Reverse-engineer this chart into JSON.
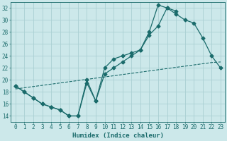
{
  "bg_color": "#cce8ea",
  "grid_color": "#aad0d3",
  "line_color": "#1a6b6b",
  "xlabel": "Humidex (Indice chaleur)",
  "xlim": [
    -0.5,
    23.5
  ],
  "ylim": [
    13,
    33
  ],
  "yticks": [
    14,
    16,
    18,
    20,
    22,
    24,
    26,
    28,
    30,
    32
  ],
  "xticks": [
    0,
    1,
    2,
    3,
    4,
    5,
    6,
    7,
    8,
    9,
    10,
    11,
    12,
    13,
    14,
    15,
    16,
    17,
    18,
    19,
    20,
    21,
    22,
    23
  ],
  "line1_x": [
    0,
    1,
    2,
    3,
    4,
    5,
    6,
    7,
    8,
    9,
    10,
    11,
    12,
    13,
    14,
    15,
    16,
    17,
    18,
    19,
    20,
    21,
    22,
    23
  ],
  "line1_y": [
    19,
    18,
    17,
    16,
    15.5,
    15,
    14,
    14,
    20,
    16.5,
    21,
    22,
    23,
    24,
    25,
    27.5,
    29,
    32,
    31,
    30,
    29.5,
    27,
    24,
    22
  ],
  "line2_x": [
    0,
    1,
    2,
    3,
    4,
    5,
    6,
    7,
    8,
    9,
    10,
    11,
    12,
    13,
    14,
    15,
    16,
    17,
    18,
    19,
    20,
    21,
    22,
    23
  ],
  "line2_y": [
    19,
    18,
    17,
    16,
    15.5,
    15,
    14,
    14,
    19.5,
    16.5,
    22,
    23.5,
    24,
    24.5,
    25,
    28,
    32.5,
    32,
    31.5,
    null,
    null,
    null,
    null,
    null
  ],
  "line3_x": [
    0,
    1,
    2,
    3,
    4,
    5,
    6,
    7,
    8,
    9,
    10,
    11,
    12,
    13,
    14,
    15,
    16,
    17,
    18,
    19,
    20,
    21,
    22,
    23
  ],
  "line3_y": [
    18.5,
    18.7,
    18.9,
    19.1,
    19.3,
    19.5,
    19.7,
    19.9,
    20.1,
    20.3,
    20.5,
    20.7,
    20.9,
    21.1,
    21.3,
    21.5,
    21.7,
    21.9,
    22.1,
    22.3,
    22.5,
    22.7,
    22.9,
    23.0
  ],
  "marker": "D",
  "markersize": 2.5,
  "tick_fontsize": 5.5,
  "xlabel_fontsize": 6.5
}
